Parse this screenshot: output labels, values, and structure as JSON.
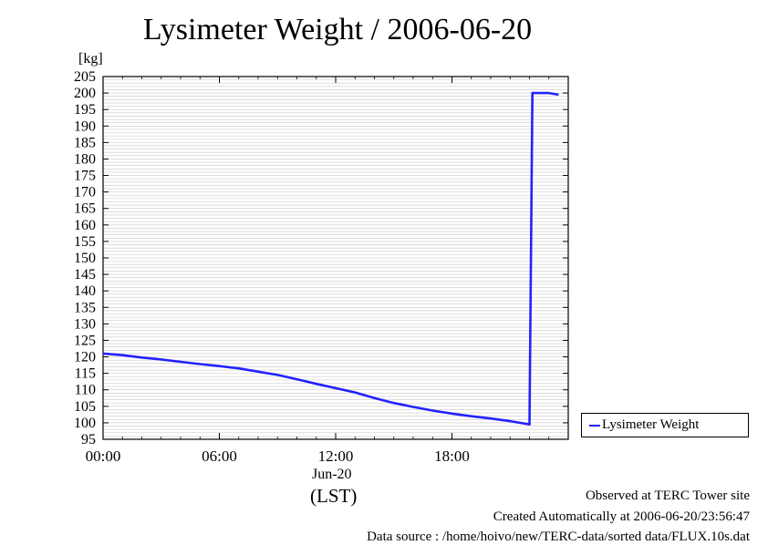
{
  "chart_data": {
    "type": "line",
    "title": "Lysimeter Weight / 2006-06-20",
    "unit_label": "[kg]",
    "date_label": "Jun-20",
    "xlabel": "(LST)",
    "xlim": [
      0,
      24
    ],
    "ylim": [
      95,
      205
    ],
    "y_ticks": [
      "95",
      "100",
      "105",
      "110",
      "115",
      "120",
      "125",
      "130",
      "135",
      "140",
      "145",
      "150",
      "155",
      "160",
      "165",
      "170",
      "175",
      "180",
      "185",
      "190",
      "195",
      "200",
      "205"
    ],
    "x_ticks": [
      "00:00",
      "06:00",
      "12:00",
      "18:00"
    ],
    "grid": true,
    "legend_position": "right",
    "series": [
      {
        "name": "Lysimeter Weight",
        "color": "#2222ff",
        "x_hours": [
          0,
          1,
          2,
          3,
          4,
          5,
          6,
          7,
          8,
          9,
          10,
          11,
          12,
          13,
          14,
          15,
          16,
          17,
          18,
          19,
          20,
          21,
          22.0,
          22.15,
          23,
          23.5
        ],
        "y": [
          121,
          120.5,
          119.8,
          119.2,
          118.5,
          117.8,
          117.2,
          116.5,
          115.5,
          114.5,
          113.2,
          111.8,
          110.5,
          109.2,
          107.5,
          106,
          104.8,
          103.7,
          102.8,
          102,
          101.3,
          100.5,
          99.5,
          200,
          200,
          199.5
        ]
      }
    ]
  },
  "legend": {
    "label": "Lysimeter Weight"
  },
  "footer": {
    "line1": "Observed at TERC Tower site",
    "line2": "Created Automatically at 2006-06-20/23:56:47",
    "line3": "Data source : /home/hoivo/new/TERC-data/sorted  data/FLUX.10s.dat"
  }
}
